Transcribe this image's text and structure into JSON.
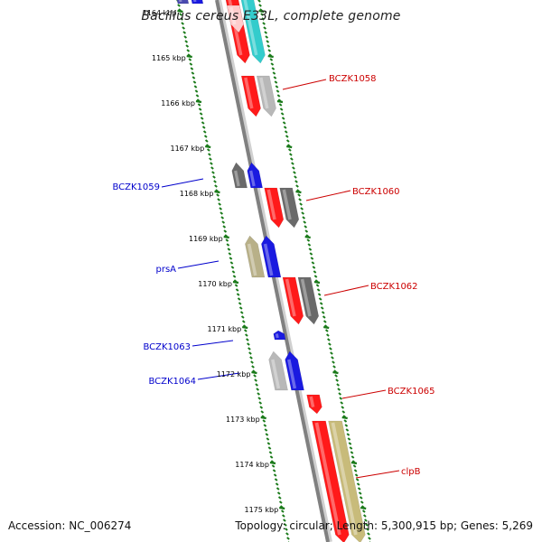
{
  "title": "Bacillus cereus E33L, complete genome",
  "footer": {
    "accession": "Accession: NC_006274",
    "topology": "Topology: circular; Length: 5,300,915 bp; Genes: 5,269"
  },
  "colors": {
    "forward_label": "#0000cc",
    "reverse_label": "#cc0000",
    "tick": "#1a7a1a",
    "backbone": "#808080"
  },
  "kbp_labels": [
    "1164 kbp",
    "1165 kbp",
    "1166 kbp",
    "1167 kbp",
    "1168 kbp",
    "1169 kbp",
    "1170 kbp",
    "1171 kbp",
    "1172 kbp",
    "1173 kbp",
    "1174 kbp",
    "1175 kbp"
  ],
  "gene_labels": [
    {
      "text": "BCZK1058",
      "side": "right"
    },
    {
      "text": "BCZK1059",
      "side": "left"
    },
    {
      "text": "BCZK1060",
      "side": "right"
    },
    {
      "text": "prsA",
      "side": "left"
    },
    {
      "text": "BCZK1062",
      "side": "right"
    },
    {
      "text": "BCZK1063",
      "side": "left"
    },
    {
      "text": "BCZK1064",
      "side": "left"
    },
    {
      "text": "BCZK1065",
      "side": "right"
    },
    {
      "text": "clpB",
      "side": "right"
    }
  ]
}
